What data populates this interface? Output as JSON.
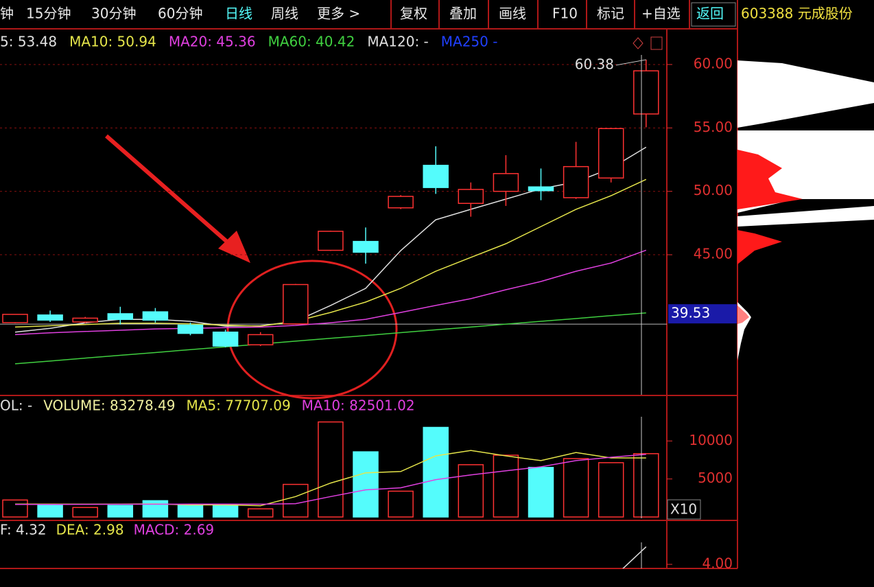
{
  "toolbar": {
    "items": [
      "钟",
      "15分钟",
      "30分钟",
      "60分钟",
      "日线",
      "周线",
      "更多 >",
      "复权",
      "叠加",
      "画线",
      "F10",
      "标记",
      "+自选",
      "返回"
    ],
    "stock": "603388 元成股份"
  },
  "chart_data": [
    {
      "type": "candlestick",
      "categories": [
        null,
        null,
        null,
        null,
        null,
        null,
        null,
        null,
        null,
        null,
        null,
        null,
        null,
        null,
        null,
        null,
        null,
        null,
        null
      ],
      "open": [
        39.65,
        40.25,
        39.7,
        40.35,
        40.5,
        39.45,
        38.9,
        37.9,
        39.55,
        45.35,
        46.05,
        48.7,
        52.05,
        49.05,
        50.0,
        50.35,
        49.5,
        51.05,
        56.1
      ],
      "high": [
        40.3,
        40.6,
        40.1,
        40.9,
        40.8,
        39.65,
        39.1,
        38.9,
        42.7,
        46.9,
        47.15,
        49.7,
        53.55,
        50.7,
        52.85,
        51.8,
        53.9,
        54.95,
        60.38
      ],
      "low": [
        39.6,
        39.7,
        39.6,
        39.5,
        39.65,
        38.65,
        37.7,
        37.8,
        39.5,
        45.3,
        44.3,
        48.6,
        49.8,
        48.0,
        48.85,
        49.3,
        49.4,
        50.7,
        55.05
      ],
      "close": [
        40.3,
        39.85,
        40.0,
        39.9,
        39.85,
        38.8,
        37.8,
        38.7,
        42.65,
        46.85,
        45.2,
        49.6,
        50.3,
        50.15,
        51.4,
        50.05,
        51.95,
        54.95,
        59.5
      ],
      "up_color": "#ff3232",
      "down_color": "#54fcfc",
      "series": [
        {
          "name": "5: 53.48",
          "color": "#e0e0e0",
          "values": [
            38.9,
            39.2,
            39.64,
            39.91,
            39.9,
            39.75,
            39.37,
            39.4,
            39.75,
            41.0,
            42.35,
            45.33,
            47.76,
            48.58,
            49.39,
            50.2,
            50.74,
            51.82,
            53.48
          ]
        },
        {
          "name": "MA10: 50.94",
          "color": "#e5e54a",
          "values": [
            39.3,
            39.4,
            39.5,
            39.6,
            39.6,
            39.55,
            39.45,
            39.37,
            39.75,
            40.45,
            41.27,
            42.35,
            43.7,
            44.79,
            45.87,
            47.22,
            48.58,
            49.66,
            50.94
          ]
        },
        {
          "name": "MA20: 45.36",
          "color": "#e040e0",
          "values": [
            38.7,
            38.85,
            38.95,
            39.05,
            39.15,
            39.2,
            39.25,
            39.3,
            39.43,
            39.64,
            39.91,
            40.45,
            41.0,
            41.54,
            42.24,
            42.89,
            43.7,
            44.35,
            45.36
          ]
        },
        {
          "name": "MA60: 40.42",
          "color": "#40d040",
          "values": [
            36.4,
            36.62,
            36.85,
            37.07,
            37.29,
            37.52,
            37.74,
            37.96,
            38.19,
            38.41,
            38.63,
            38.86,
            39.08,
            39.3,
            39.53,
            39.75,
            39.97,
            40.2,
            40.42
          ]
        },
        {
          "name": "MA120: -",
          "color": "#e0e0e0",
          "values": [
            null,
            null,
            null,
            null,
            null,
            null,
            null,
            null,
            null,
            null,
            null,
            null,
            null,
            null,
            null,
            null,
            null,
            null,
            null
          ]
        },
        {
          "name": "MA250 -",
          "color": "#2040ff",
          "values": [
            null,
            null,
            null,
            null,
            null,
            null,
            null,
            null,
            null,
            null,
            null,
            null,
            null,
            null,
            null,
            null,
            null,
            null,
            null
          ]
        }
      ],
      "ylim": [
        33.96,
        62.65
      ],
      "yticks": [
        {
          "value": 45,
          "label": "45.00"
        },
        {
          "value": 50,
          "label": "50.00"
        },
        {
          "value": 55,
          "label": "55.00"
        },
        {
          "value": 60,
          "label": "60.00"
        }
      ],
      "grid": true,
      "max_label": 60.38,
      "cursor": 39.53
    },
    {
      "type": "bar",
      "categories": [
        null,
        null,
        null,
        null,
        null,
        null,
        null,
        null,
        null,
        null,
        null,
        null,
        null,
        null,
        null,
        null,
        null,
        null,
        null
      ],
      "values": [
        2232,
        1518,
        1250,
        1518,
        2143,
        1518,
        1518,
        1071,
        4286,
        12500,
        8571,
        3393,
        11786,
        6875,
        8125,
        6518,
        7679,
        7143,
        8328
      ],
      "colors": [
        "#ff3232",
        "#54fcfc",
        "#ff3232",
        "#54fcfc",
        "#54fcfc",
        "#54fcfc",
        "#54fcfc",
        "#ff3232",
        "#ff3232",
        "#ff3232",
        "#54fcfc",
        "#ff3232",
        "#54fcfc",
        "#ff3232",
        "#ff3232",
        "#54fcfc",
        "#ff3232",
        "#ff3232",
        "#ff3232"
      ],
      "labels": [
        "OL: -",
        "VOLUME: 83278.49"
      ],
      "series": [
        {
          "name": "MA5: 77707.09",
          "color": "#e5e54a",
          "values": [
            1700,
            1690,
            1680,
            1700,
            1720,
            1590,
            1590,
            1480,
            2679,
            4464,
            5804,
            5982,
            8036,
            8750,
            8036,
            7411,
            8482,
            7768,
            7771
          ]
        },
        {
          "name": "MA10: 82501.02",
          "color": "#e040e0",
          "values": [
            1650,
            1650,
            1660,
            1670,
            1680,
            1690,
            1690,
            1680,
            1750,
            2679,
            3571,
            3839,
            4911,
            5536,
            6071,
            6607,
            7411,
            7857,
            8250
          ]
        }
      ],
      "ylim": [
        -179,
        15804
      ],
      "yticks": [
        5000,
        10000
      ],
      "unit": "X10"
    },
    {
      "type": "line",
      "categories": [
        null,
        null,
        null,
        null,
        null,
        null,
        null,
        null,
        null,
        null,
        null,
        null,
        null,
        null,
        null,
        null,
        null,
        null,
        null
      ],
      "series": [
        {
          "name": "F: 4.32",
          "color": "#e0e0e0",
          "values": [
            null,
            null,
            null,
            null,
            null,
            null,
            null,
            null,
            null,
            null,
            null,
            null,
            null,
            null,
            null,
            null,
            null,
            3.72,
            4.32
          ]
        },
        {
          "name": "DEA: 2.98",
          "color": "#e5e54a",
          "values": [
            null,
            null,
            null,
            null,
            null,
            null,
            null,
            null,
            null,
            null,
            null,
            null,
            null,
            null,
            null,
            null,
            null,
            null,
            null
          ]
        },
        {
          "name": "MACD: 2.69",
          "color": "#e040e0",
          "values": [
            null,
            null,
            null,
            null,
            null,
            null,
            null,
            null,
            null,
            null,
            null,
            null,
            null,
            null,
            null,
            null,
            null,
            null,
            null
          ]
        }
      ],
      "ylim": [
        3.925,
        4.775
      ],
      "yticks": [
        {
          "value": 4,
          "label": "4.00"
        }
      ]
    }
  ]
}
